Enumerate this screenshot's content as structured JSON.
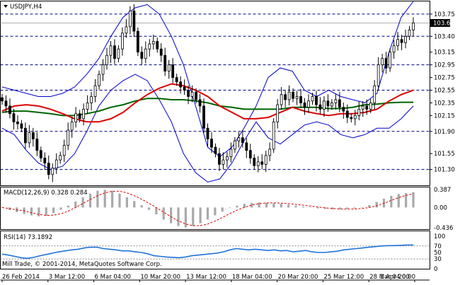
{
  "header": {
    "symbol_label": "USDJPY,H4"
  },
  "price_axis": {
    "ticks": [
      "103.75",
      "103.40",
      "103.15",
      "102.95",
      "102.75",
      "102.55",
      "102.35",
      "102.15",
      "101.90",
      "101.55",
      "101.30"
    ],
    "current_price": "103.61"
  },
  "macd": {
    "label": "MACD(12,26,9) 0.328 0.284",
    "ticks": [
      "0.387",
      "0.00",
      "-0.436"
    ]
  },
  "rsi": {
    "label": "RSI(14) 73.1892",
    "ticks": [
      "100",
      "70",
      "50",
      "30",
      "0"
    ]
  },
  "copyright": "Mill Trade, © 2001-2014, MetaQuotes Software Corp.",
  "time_axis": [
    "26 Feb 2014",
    "3 Mar 12:00",
    "6 Mar 04:00",
    "10 Mar 20:00",
    "13 Mar 12:00",
    "18 Mar 04:00",
    "20 Mar 20:00",
    "25 Mar 12:00",
    "28 Mar 04:00",
    "1 Apr 20:00"
  ],
  "colors": {
    "candles": "#000000",
    "bollinger": "#0000cc",
    "ma_fast": "#dd0000",
    "ma_slow": "#006400",
    "rsi": "#1e74d8",
    "macd_hist": "#a9a9a9",
    "macd_signal": "#dd0000",
    "level_line": "#000080"
  },
  "chart_data": {
    "type": "line",
    "instrument": "USDJPY",
    "timeframe": "H4",
    "ylim": [
      101.05,
      103.95
    ],
    "horizontal_levels": [
      103.75,
      103.4,
      102.95,
      102.55,
      101.9,
      101.3
    ],
    "current_price": 103.61,
    "close": [
      102.38,
      102.3,
      102.18,
      102.05,
      102.02,
      101.95,
      101.72,
      101.88,
      101.78,
      101.6,
      101.48,
      101.4,
      101.22,
      101.32,
      101.45,
      101.52,
      101.68,
      101.92,
      102.05,
      102.18,
      102.1,
      102.25,
      102.35,
      102.45,
      102.62,
      102.8,
      102.95,
      103.1,
      103.25,
      103.05,
      103.2,
      103.45,
      103.55,
      103.8,
      103.48,
      103.15,
      103.05,
      103.2,
      103.28,
      103.32,
      103.2,
      103.1,
      102.85,
      102.95,
      102.75,
      102.68,
      102.6,
      102.55,
      102.45,
      102.52,
      102.4,
      102.3,
      101.95,
      101.78,
      101.65,
      101.55,
      101.38,
      101.45,
      101.5,
      101.62,
      101.75,
      101.8,
      101.72,
      101.6,
      101.48,
      101.36,
      101.42,
      101.38,
      101.52,
      101.62,
      102.05,
      102.32,
      102.48,
      102.4,
      102.52,
      102.42,
      102.45,
      102.35,
      102.28,
      102.38,
      102.45,
      102.32,
      102.25,
      102.38,
      102.3,
      102.35,
      102.4,
      102.28,
      102.22,
      102.12,
      102.1,
      102.15,
      102.25,
      102.3,
      102.25,
      102.35,
      102.62,
      102.95,
      103.05,
      102.9,
      103.15,
      103.25,
      103.35,
      103.3,
      103.4,
      103.5,
      103.61
    ],
    "bollinger_upper": [
      102.6,
      102.55,
      102.5,
      102.45,
      102.45,
      102.5,
      102.6,
      102.8,
      103.05,
      103.4,
      103.7,
      103.85,
      103.9,
      103.75,
      103.4,
      102.95,
      102.3,
      101.65,
      101.5,
      101.65,
      101.95,
      102.3,
      102.75,
      102.9,
      102.85,
      102.55,
      102.45,
      102.55,
      102.45,
      102.4,
      102.35,
      102.5,
      103.15,
      103.7,
      103.95
    ],
    "bollinger_mid": [
      102.3,
      102.22,
      102.1,
      101.95,
      101.78,
      101.68,
      101.7,
      101.9,
      102.2,
      102.55,
      102.85,
      103.05,
      103.1,
      102.98,
      102.8,
      102.6,
      102.35,
      102.05,
      101.8,
      101.68,
      101.75,
      101.95,
      102.15,
      102.25,
      102.3,
      102.3,
      102.28,
      102.25,
      102.22,
      102.18,
      102.15,
      102.35,
      102.7,
      103.05,
      103.25
    ],
    "bollinger_lower": [
      101.95,
      101.85,
      101.6,
      101.4,
      101.3,
      101.35,
      101.55,
      101.9,
      102.3,
      102.55,
      102.7,
      102.8,
      102.7,
      102.4,
      102.05,
      101.55,
      101.25,
      101.1,
      101.15,
      101.4,
      101.75,
      102.05,
      101.8,
      101.7,
      101.85,
      102.0,
      102.05,
      102.0,
      101.85,
      101.8,
      101.85,
      101.95,
      101.95,
      102.1,
      102.3
    ],
    "ma_fast": [
      102.22,
      102.3,
      102.32,
      102.3,
      102.25,
      102.18,
      102.1,
      102.05,
      102.05,
      102.1,
      102.2,
      102.35,
      102.48,
      102.58,
      102.65,
      102.62,
      102.55,
      102.45,
      102.3,
      102.2,
      102.1,
      102.1,
      102.12,
      102.2,
      102.28,
      102.22,
      102.18,
      102.15,
      102.18,
      102.18,
      102.2,
      102.25,
      102.38,
      102.48,
      102.55
    ],
    "ma_slow": [
      102.2,
      102.22,
      102.22,
      102.2,
      102.18,
      102.15,
      102.15,
      102.18,
      102.22,
      102.28,
      102.32,
      102.38,
      102.42,
      102.42,
      102.4,
      102.4,
      102.38,
      102.35,
      102.3,
      102.28,
      102.25,
      102.25,
      102.25,
      102.25,
      102.28,
      102.28,
      102.28,
      102.26,
      102.26,
      102.28,
      102.32,
      102.33,
      102.35,
      102.36,
      102.36
    ],
    "macd_hist": [
      0.0,
      -0.05,
      -0.1,
      -0.14,
      -0.17,
      -0.19,
      -0.18,
      -0.12,
      -0.05,
      0.04,
      0.13,
      0.22,
      0.3,
      0.36,
      0.38,
      0.36,
      0.3,
      0.22,
      0.14,
      0.05,
      -0.05,
      -0.15,
      -0.26,
      -0.34,
      -0.4,
      -0.43,
      -0.4,
      -0.34,
      -0.26,
      -0.17,
      -0.09,
      -0.01,
      0.04,
      0.08,
      0.1,
      0.11,
      0.1,
      0.09,
      0.08,
      0.06,
      0.04,
      0.02,
      0.0,
      -0.02,
      -0.03,
      -0.04,
      -0.04,
      -0.03,
      -0.02,
      0.0,
      0.05,
      0.12,
      0.19,
      0.25,
      0.29,
      0.31,
      0.33
    ],
    "rsi": [
      45,
      42,
      38,
      34,
      32,
      35,
      40,
      44,
      48,
      52,
      55,
      58,
      60,
      64,
      66,
      66,
      62,
      60,
      58,
      55,
      55,
      52,
      50,
      46,
      40,
      38,
      36,
      35,
      34,
      36,
      40,
      42,
      44,
      46,
      48,
      52,
      58,
      62,
      60,
      58,
      60,
      58,
      56,
      58,
      55,
      56,
      52,
      54,
      56,
      52,
      50,
      50,
      52,
      54,
      58,
      60,
      62,
      64,
      66,
      68,
      70,
      71,
      71,
      72,
      73,
      73
    ]
  }
}
